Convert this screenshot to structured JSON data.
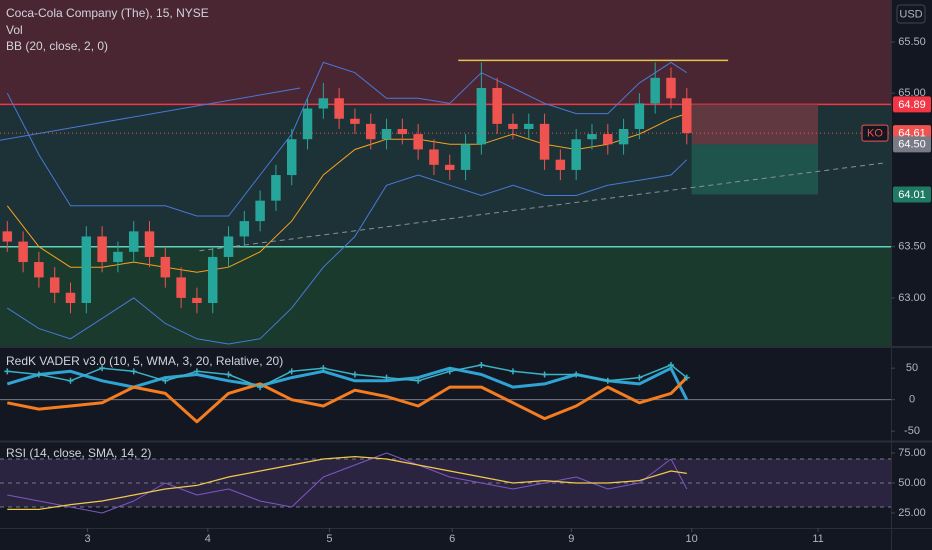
{
  "chart_data": [
    {
      "type": "candlestick",
      "title": "Coca-Cola Company (The), 15, NYSE",
      "annotations": [
        "Vol",
        "BB (20, close, 2, 0)"
      ],
      "currency": "USD",
      "up_color": "#26a69a",
      "down_color": "#ef5350",
      "x": [
        0.06,
        0.19,
        0.32,
        0.45,
        0.58,
        0.71,
        0.84,
        0.97,
        1.1,
        1.23,
        1.36,
        1.49,
        1.62,
        1.75,
        1.88,
        2.01,
        2.14,
        2.27,
        2.4,
        2.53,
        2.66,
        2.79,
        2.92,
        3.05,
        3.18,
        3.31,
        3.44,
        3.57,
        3.7,
        3.83,
        3.96,
        4.09,
        4.22,
        4.35,
        4.48,
        4.61,
        4.74,
        4.87,
        5.0,
        5.13,
        5.26,
        5.39,
        5.52,
        5.65
      ],
      "open": [
        63.65,
        63.55,
        63.35,
        63.2,
        63.05,
        62.95,
        63.6,
        63.35,
        63.45,
        63.65,
        63.4,
        63.2,
        63.0,
        62.95,
        63.4,
        63.6,
        63.75,
        63.95,
        64.2,
        64.55,
        64.85,
        64.95,
        64.75,
        64.7,
        64.55,
        64.65,
        64.6,
        64.45,
        64.3,
        64.25,
        64.5,
        65.05,
        64.7,
        64.65,
        64.7,
        64.35,
        64.25,
        64.55,
        64.6,
        64.5,
        64.65,
        64.9,
        65.15,
        64.95
      ],
      "high": [
        63.75,
        63.65,
        63.45,
        63.3,
        63.15,
        63.7,
        63.7,
        63.55,
        63.75,
        63.75,
        63.5,
        63.3,
        63.1,
        63.5,
        63.7,
        63.85,
        64.05,
        64.3,
        64.65,
        64.95,
        65.1,
        65.05,
        64.85,
        64.8,
        64.75,
        64.75,
        64.7,
        64.55,
        64.4,
        64.6,
        65.3,
        65.15,
        64.8,
        64.8,
        64.8,
        64.45,
        64.65,
        64.7,
        64.7,
        64.75,
        65.0,
        65.3,
        65.25,
        65.05
      ],
      "low": [
        63.45,
        63.25,
        63.1,
        62.95,
        62.85,
        62.85,
        63.25,
        63.25,
        63.35,
        63.3,
        63.1,
        62.9,
        62.85,
        62.85,
        63.3,
        63.5,
        63.65,
        63.85,
        64.1,
        64.45,
        64.75,
        64.65,
        64.6,
        64.45,
        64.45,
        64.5,
        64.35,
        64.2,
        64.15,
        64.15,
        64.4,
        64.6,
        64.55,
        64.55,
        64.25,
        64.15,
        64.15,
        64.45,
        64.4,
        64.4,
        64.55,
        64.8,
        64.85,
        64.5
      ],
      "close": [
        63.55,
        63.35,
        63.2,
        63.05,
        62.95,
        63.6,
        63.35,
        63.45,
        63.65,
        63.4,
        63.2,
        63.0,
        62.95,
        63.4,
        63.6,
        63.75,
        63.95,
        64.2,
        64.55,
        64.85,
        64.95,
        64.75,
        64.7,
        64.55,
        64.65,
        64.6,
        64.45,
        64.3,
        64.25,
        64.5,
        65.05,
        64.7,
        64.65,
        64.7,
        64.35,
        64.25,
        64.55,
        64.6,
        64.5,
        64.65,
        64.9,
        65.15,
        64.95,
        64.61
      ],
      "bb": {
        "x": [
          0.06,
          0.32,
          0.58,
          0.84,
          1.1,
          1.36,
          1.62,
          1.88,
          2.14,
          2.4,
          2.66,
          2.92,
          3.18,
          3.44,
          3.7,
          3.96,
          4.22,
          4.48,
          4.74,
          5.0,
          5.26,
          5.52,
          5.65
        ],
        "upper": [
          65.0,
          64.4,
          63.9,
          63.9,
          63.9,
          63.9,
          63.8,
          63.8,
          64.2,
          64.6,
          65.3,
          65.2,
          64.95,
          64.95,
          64.9,
          65.2,
          65.05,
          64.9,
          64.8,
          64.8,
          65.1,
          65.3,
          65.2
        ],
        "basis": [
          63.9,
          63.5,
          63.3,
          63.3,
          63.35,
          63.3,
          63.25,
          63.3,
          63.45,
          63.75,
          64.2,
          64.45,
          64.55,
          64.55,
          64.5,
          64.5,
          64.6,
          64.5,
          64.45,
          64.5,
          64.6,
          64.75,
          64.8
        ],
        "lower": [
          62.9,
          62.7,
          62.6,
          62.8,
          63.0,
          62.75,
          62.6,
          62.55,
          62.6,
          62.9,
          63.3,
          63.6,
          64.1,
          64.2,
          64.1,
          64.0,
          64.1,
          64.0,
          64.0,
          64.1,
          64.15,
          64.2,
          64.35
        ],
        "band_color": "#4a78d6",
        "basis_color": "#f7a21b"
      },
      "xlim": [
        0,
        7.33
      ],
      "ylim": [
        62.53,
        65.91
      ],
      "xticks": [
        {
          "value": 0.72,
          "label": "3"
        },
        {
          "value": 1.71,
          "label": "4"
        },
        {
          "value": 2.71,
          "label": "5"
        },
        {
          "value": 3.72,
          "label": "6"
        },
        {
          "value": 4.7,
          "label": "9"
        },
        {
          "value": 5.69,
          "label": "10"
        },
        {
          "value": 6.73,
          "label": "11"
        }
      ],
      "yticks": [
        {
          "value": 63,
          "label": "63.00"
        },
        {
          "value": 63.5,
          "label": "63.50"
        },
        {
          "value": 65,
          "label": "65.00"
        },
        {
          "value": 65.5,
          "label": "65.50"
        }
      ],
      "zones": [
        {
          "value": 64.89,
          "side": "above",
          "color": "#4a2632",
          "line_color": "#f23645"
        },
        {
          "value": 63.5,
          "side": "below",
          "color": "#1b3a2e",
          "line_color": "#5fd3b5"
        }
      ],
      "resistance": {
        "x": [
          3.77,
          5.99
        ],
        "value": 65.32,
        "color": "#e8c54a"
      },
      "trendlines": [
        {
          "x": [
            0,
            2.47
          ],
          "y": [
            64.54,
            65.05
          ],
          "color": "#4a78d6",
          "dashed": false
        },
        {
          "x": [
            1.64,
            7.28
          ],
          "y": [
            63.46,
            64.32
          ],
          "color": "#8a8e99",
          "dashed": true
        }
      ],
      "position": {
        "x": [
          5.69,
          6.73
        ],
        "entry": 64.5,
        "stop": 64.89,
        "target": 64.01,
        "stop_color": "#6b3a42",
        "target_color": "#1f5a4f"
      },
      "price_labels": [
        {
          "value": 64.89,
          "color": "#f23645"
        },
        {
          "value": 64.61,
          "color": "#ef5350",
          "ticker": "KO"
        },
        {
          "value": 64.5,
          "label": "64.50",
          "color": "#787b86"
        },
        {
          "value": 64.01,
          "color": "#1e7a63"
        }
      ]
    },
    {
      "type": "line",
      "title": "RedK VADER v3.0 (10, 5, WMA, 3, 20, Relative, 20)",
      "x": [
        0.06,
        0.32,
        0.58,
        0.84,
        1.1,
        1.36,
        1.62,
        1.88,
        2.14,
        2.4,
        2.66,
        2.92,
        3.18,
        3.44,
        3.7,
        3.96,
        4.22,
        4.48,
        4.74,
        5.0,
        5.26,
        5.52,
        5.65
      ],
      "series": [
        {
          "color": "#2fa4d4",
          "width": 3,
          "marker": "none",
          "values": [
            25,
            40,
            45,
            30,
            20,
            35,
            40,
            30,
            22,
            35,
            45,
            30,
            30,
            35,
            50,
            40,
            20,
            25,
            40,
            30,
            25,
            50,
            0
          ]
        },
        {
          "color": "#f57c1f",
          "width": 3,
          "marker": "none",
          "values": [
            -5,
            -15,
            -10,
            -5,
            20,
            10,
            -35,
            10,
            25,
            0,
            -10,
            15,
            5,
            -10,
            20,
            20,
            -5,
            -30,
            -10,
            20,
            -5,
            10,
            35
          ]
        },
        {
          "color": "#3bb3c3",
          "width": 1.5,
          "marker": "cross",
          "values": [
            45,
            40,
            30,
            50,
            45,
            30,
            45,
            40,
            20,
            45,
            50,
            40,
            35,
            30,
            45,
            55,
            45,
            40,
            40,
            30,
            35,
            55,
            35
          ]
        }
      ],
      "xlim": [
        0,
        7.33
      ],
      "ylim": [
        -64,
        82
      ],
      "yticks": [
        50,
        0,
        -50
      ],
      "baseline": 0
    },
    {
      "type": "line",
      "title": "RSI (14, close, SMA, 14, 2)",
      "x": [
        0.06,
        0.32,
        0.58,
        0.84,
        1.1,
        1.36,
        1.62,
        1.88,
        2.14,
        2.4,
        2.66,
        2.92,
        3.18,
        3.44,
        3.7,
        3.96,
        4.22,
        4.48,
        4.74,
        5.0,
        5.26,
        5.52,
        5.65
      ],
      "series": [
        {
          "color": "#7e57c2",
          "width": 1,
          "marker": "none",
          "values": [
            40,
            35,
            30,
            25,
            35,
            50,
            40,
            45,
            35,
            30,
            55,
            65,
            75,
            65,
            55,
            50,
            45,
            50,
            55,
            45,
            50,
            70,
            45
          ]
        },
        {
          "color": "#f2c94c",
          "width": 1.2,
          "marker": "none",
          "values": [
            28,
            28,
            32,
            35,
            40,
            45,
            48,
            55,
            60,
            65,
            70,
            72,
            70,
            65,
            60,
            55,
            50,
            52,
            50,
            50,
            52,
            60,
            58
          ]
        }
      ],
      "xlim": [
        0,
        7.33
      ],
      "ylim": [
        12.5,
        83.3
      ],
      "yticks": [
        {
          "value": 75,
          "label": "75.00"
        },
        {
          "value": 50,
          "label": "50.00"
        },
        {
          "value": 25,
          "label": "25.00"
        }
      ],
      "bands": [
        70,
        50,
        30
      ],
      "band_color": "#2a2440"
    }
  ]
}
